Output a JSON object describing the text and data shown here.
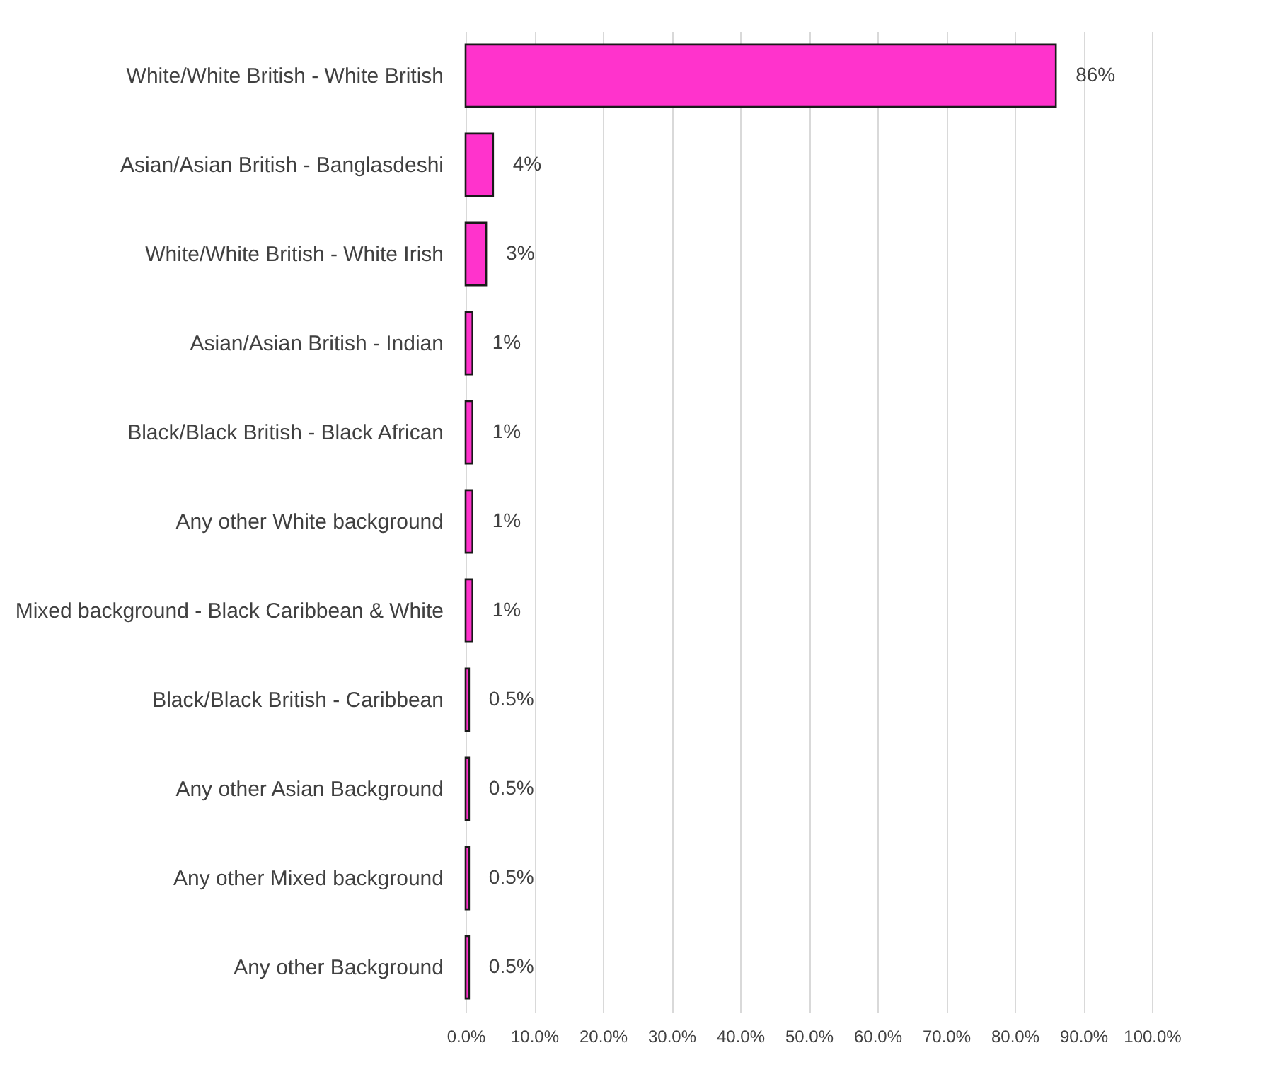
{
  "chart_data": {
    "type": "bar",
    "orientation": "horizontal",
    "categories": [
      "White/White British - White British",
      "Asian/Asian British - Banglasdeshi",
      "White/White British - White Irish",
      "Asian/Asian British - Indian",
      "Black/Black British - Black African",
      "Any other White background",
      "Mixed background - Black Caribbean & White",
      "Black/Black British - Caribbean",
      "Any other Asian Background",
      "Any other Mixed background",
      "Any other Background"
    ],
    "values": [
      86,
      4,
      3,
      1,
      1,
      1,
      1,
      0.5,
      0.5,
      0.5,
      0.5
    ],
    "value_labels": [
      "86%",
      "4%",
      "3%",
      "1%",
      "1%",
      "1%",
      "1%",
      "0.5%",
      "0.5%",
      "0.5%",
      "0.5%"
    ],
    "color": "#ff33cc",
    "xlim": [
      0,
      100
    ],
    "xticks": [
      {
        "value": 0,
        "label": "0.0%"
      },
      {
        "value": 10,
        "label": "10.0%"
      },
      {
        "value": 20,
        "label": "20.0%"
      },
      {
        "value": 30,
        "label": "30.0%"
      },
      {
        "value": 40,
        "label": "40.0%"
      },
      {
        "value": 50,
        "label": "50.0%"
      },
      {
        "value": 60,
        "label": "60.0%"
      },
      {
        "value": 70,
        "label": "70.0%"
      },
      {
        "value": 80,
        "label": "80.0%"
      },
      {
        "value": 90,
        "label": "90.0%"
      },
      {
        "value": 100,
        "label": "100.0%"
      }
    ],
    "grid": "x"
  }
}
